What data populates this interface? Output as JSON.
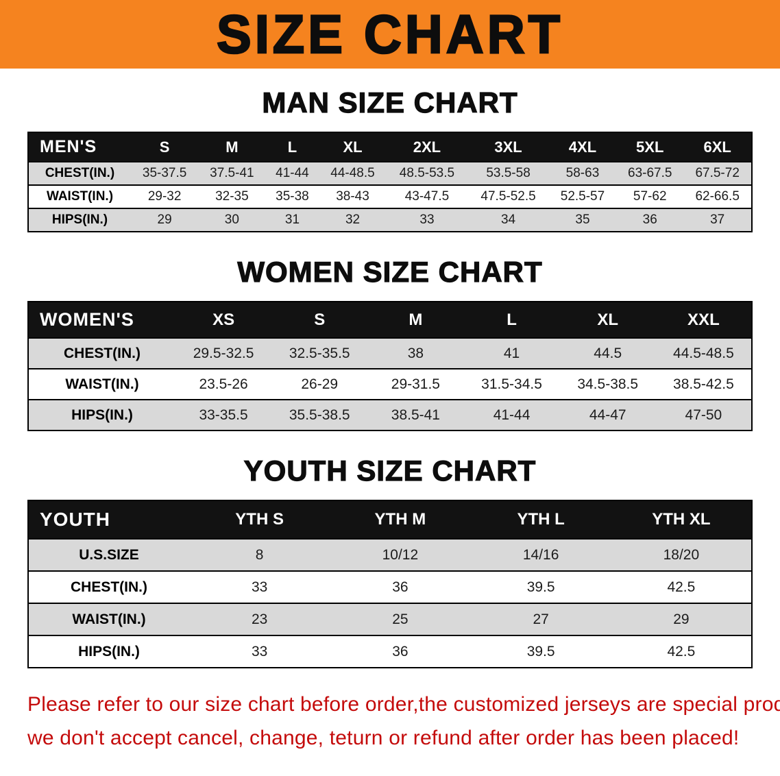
{
  "banner": {
    "title": "SIZE CHART"
  },
  "colors": {
    "banner_orange": "#f5831f",
    "header_black": "#121212",
    "row_gray": "#d9d9d9",
    "notice_red": "#c40b0b"
  },
  "sections": [
    {
      "heading": "MAN SIZE CHART",
      "label": "MEN'S",
      "columns": [
        "S",
        "M",
        "L",
        "XL",
        "2XL",
        "3XL",
        "4XL",
        "5XL",
        "6XL"
      ],
      "rows": [
        {
          "label": "CHEST(IN.)",
          "values": [
            "35-37.5",
            "37.5-41",
            "41-44",
            "44-48.5",
            "48.5-53.5",
            "53.5-58",
            "58-63",
            "63-67.5",
            "67.5-72"
          ]
        },
        {
          "label": "WAIST(IN.)",
          "values": [
            "29-32",
            "32-35",
            "35-38",
            "38-43",
            "43-47.5",
            "47.5-52.5",
            "52.5-57",
            "57-62",
            "62-66.5"
          ]
        },
        {
          "label": "HIPS(IN.)",
          "values": [
            "29",
            "30",
            "31",
            "32",
            "33",
            "34",
            "35",
            "36",
            "37"
          ]
        }
      ]
    },
    {
      "heading": "WOMEN SIZE CHART",
      "label": "WOMEN'S",
      "columns": [
        "XS",
        "S",
        "M",
        "L",
        "XL",
        "XXL"
      ],
      "rows": [
        {
          "label": "CHEST(IN.)",
          "values": [
            "29.5-32.5",
            "32.5-35.5",
            "38",
            "41",
            "44.5",
            "44.5-48.5"
          ]
        },
        {
          "label": "WAIST(IN.)",
          "values": [
            "23.5-26",
            "26-29",
            "29-31.5",
            "31.5-34.5",
            "34.5-38.5",
            "38.5-42.5"
          ]
        },
        {
          "label": "HIPS(IN.)",
          "values": [
            "33-35.5",
            "35.5-38.5",
            "38.5-41",
            "41-44",
            "44-47",
            "47-50"
          ]
        }
      ]
    },
    {
      "heading": "YOUTH SIZE CHART",
      "label": "YOUTH",
      "columns": [
        "YTH S",
        "YTH M",
        "YTH L",
        "YTH XL"
      ],
      "rows": [
        {
          "label": "U.S.SIZE",
          "values": [
            "8",
            "10/12",
            "14/16",
            "18/20"
          ]
        },
        {
          "label": "CHEST(IN.)",
          "values": [
            "33",
            "36",
            "39.5",
            "42.5"
          ]
        },
        {
          "label": "WAIST(IN.)",
          "values": [
            "23",
            "25",
            "27",
            "29"
          ]
        },
        {
          "label": "HIPS(IN.)",
          "values": [
            "33",
            "36",
            "39.5",
            "42.5"
          ]
        }
      ]
    }
  ],
  "footer": {
    "line1": "Please refer to our size chart before order,the customized jerseys are special products,",
    "line2": "we don't accept cancel, change, teturn or refund after order has been placed!"
  }
}
